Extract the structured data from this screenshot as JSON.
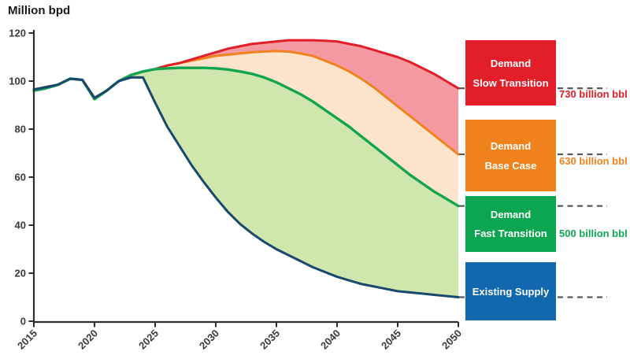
{
  "chart_data": {
    "type": "line",
    "title": "Million bpd",
    "ylabel": "Million bpd",
    "xlabel": "",
    "ylim": [
      0,
      120
    ],
    "grid": false,
    "legend_position": "right",
    "x_ticks": [
      "2015",
      "2020",
      "2025",
      "2030",
      "2035",
      "2040",
      "2045",
      "2050"
    ],
    "y_ticks": [
      "0",
      "20",
      "40",
      "60",
      "80",
      "100",
      "120"
    ],
    "x": [
      2015,
      2016,
      2017,
      2018,
      2019,
      2020,
      2021,
      2022,
      2023,
      2024,
      2025,
      2026,
      2027,
      2028,
      2029,
      2030,
      2031,
      2032,
      2033,
      2034,
      2035,
      2036,
      2037,
      2038,
      2039,
      2040,
      2041,
      2042,
      2043,
      2044,
      2045,
      2046,
      2047,
      2048,
      2049,
      2050
    ],
    "series": [
      {
        "name": "Demand Slow Transition",
        "color": "#e31e29",
        "fill_color": "#f59aa2",
        "values": [
          96.5,
          97.5,
          98.5,
          101,
          100.5,
          93,
          96,
          100,
          102.5,
          104,
          105,
          106.5,
          107.5,
          109,
          110.5,
          112,
          113.5,
          114.5,
          115.5,
          116,
          116.5,
          117,
          117,
          117,
          116.8,
          116.5,
          115.5,
          114.5,
          113,
          111.5,
          110,
          108,
          105.5,
          103,
          100,
          97
        ]
      },
      {
        "name": "Demand Base Case",
        "color": "#f0821e",
        "fill_color": "#fbe3cc",
        "values": [
          96.5,
          97.5,
          98.5,
          101,
          100.5,
          93,
          96,
          100,
          102.5,
          104,
          105,
          106.5,
          107.5,
          108.5,
          109.5,
          110.5,
          111,
          111.5,
          112,
          112.3,
          112.5,
          112.3,
          111.5,
          110.5,
          108.5,
          106.5,
          104,
          101,
          97.5,
          93.5,
          89.5,
          85.5,
          81.5,
          77.5,
          73.5,
          69.5
        ]
      },
      {
        "name": "Demand Fast Transition",
        "color": "#12a54d",
        "fill_color": "#cfe6ad",
        "values": [
          96,
          97,
          98.5,
          101,
          100.5,
          92.5,
          96,
          100,
          102.5,
          104,
          105,
          105.3,
          105.5,
          105.5,
          105.5,
          105.3,
          104.8,
          104,
          103,
          101.5,
          99.5,
          97,
          94.5,
          91.5,
          88,
          84.5,
          81,
          77,
          73,
          69,
          65,
          61,
          57.5,
          54,
          51,
          48
        ]
      },
      {
        "name": "Existing Supply",
        "color": "#17486d",
        "fill_color": null,
        "values": [
          96.5,
          97.5,
          98.5,
          101,
          100.5,
          93,
          96,
          100,
          101.5,
          101.5,
          91,
          81,
          73,
          65,
          58,
          51.5,
          45.5,
          40.5,
          36.5,
          33,
          30,
          27.5,
          25,
          22.5,
          20.5,
          18.5,
          17,
          15.5,
          14.5,
          13.5,
          12.5,
          12,
          11.5,
          11,
          10.5,
          10
        ]
      }
    ]
  },
  "legend": {
    "items": [
      {
        "lines": [
          "Demand",
          "Slow Transition"
        ],
        "color": "#e31e29",
        "annotation": "730 billion bbl"
      },
      {
        "lines": [
          "Demand",
          "Base Case"
        ],
        "color": "#f0821e",
        "annotation": "630 billion bbl"
      },
      {
        "lines": [
          "Demand",
          "Fast Transition"
        ],
        "color": "#0da650",
        "annotation": "500 billion bbl"
      },
      {
        "lines": [
          "Existing Supply"
        ],
        "color": "#1268af",
        "annotation": ""
      }
    ]
  },
  "styles": {
    "axis_color": "#2e2e2e",
    "dash_color": "#58595b",
    "tick_label_color": "#3a3a3a"
  }
}
